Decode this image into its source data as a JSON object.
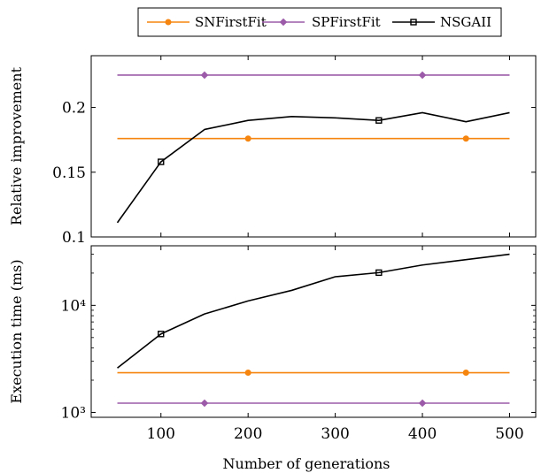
{
  "chart_data": [
    {
      "type": "line",
      "ylabel": "Relative improvement",
      "xlabel": "",
      "xlim": [
        20,
        530
      ],
      "ylim": [
        0.1,
        0.24
      ],
      "yscale": "linear",
      "xticks": [
        100,
        200,
        300,
        400,
        500
      ],
      "yticks": [
        0.1,
        0.15,
        0.2
      ],
      "ytick_labels": [
        "0.1",
        "0.15",
        "0.2"
      ],
      "series": [
        {
          "name": "SNFirstFit",
          "color": "#f5850f",
          "marker": "circle",
          "x": [
            50,
            500
          ],
          "y": [
            0.176,
            0.176
          ],
          "marker_x": [
            200,
            450
          ]
        },
        {
          "name": "SPFirstFit",
          "color": "#9c5ba8",
          "marker": "diamond",
          "x": [
            50,
            500
          ],
          "y": [
            0.225,
            0.225
          ],
          "marker_x": [
            150,
            400
          ]
        },
        {
          "name": "NSGAII",
          "color": "#000000",
          "marker": "square",
          "x": [
            50,
            100,
            150,
            200,
            250,
            300,
            350,
            400,
            450,
            500
          ],
          "y": [
            0.111,
            0.158,
            0.183,
            0.19,
            0.193,
            0.192,
            0.19,
            0.196,
            0.189,
            0.196
          ],
          "marker_x": [
            100,
            350
          ]
        }
      ]
    },
    {
      "type": "line",
      "ylabel": "Execution time (ms)",
      "xlabel": "Number of generations",
      "xlim": [
        20,
        530
      ],
      "ylim": [
        900,
        36000
      ],
      "yscale": "log",
      "xticks": [
        100,
        200,
        300,
        400,
        500
      ],
      "xtick_labels": [
        "100",
        "200",
        "300",
        "400",
        "500"
      ],
      "yticks": [
        1000,
        10000
      ],
      "ytick_labels": [
        "10³",
        "10⁴"
      ],
      "series": [
        {
          "name": "SNFirstFit",
          "color": "#f5850f",
          "marker": "circle",
          "x": [
            50,
            500
          ],
          "y": [
            2350,
            2350
          ],
          "marker_x": [
            200,
            450
          ]
        },
        {
          "name": "SPFirstFit",
          "color": "#9c5ba8",
          "marker": "diamond",
          "x": [
            50,
            500
          ],
          "y": [
            1220,
            1220
          ],
          "marker_x": [
            150,
            400
          ]
        },
        {
          "name": "NSGAII",
          "color": "#000000",
          "marker": "square",
          "x": [
            50,
            100,
            150,
            200,
            250,
            300,
            350,
            400,
            450,
            500
          ],
          "y": [
            2600,
            5400,
            8300,
            11000,
            13800,
            18500,
            20200,
            23800,
            26700,
            30000
          ],
          "marker_x": [
            100,
            350
          ]
        }
      ]
    }
  ],
  "legend": {
    "placement": "top-center",
    "items": [
      "SNFirstFit",
      "SPFirstFit",
      "NSGAII"
    ]
  }
}
